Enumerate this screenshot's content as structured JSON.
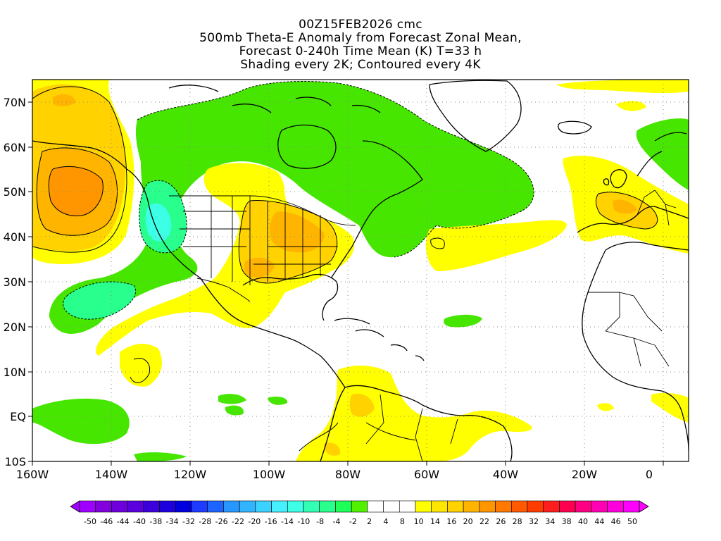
{
  "title": {
    "line1": "00Z15FEB2026 cmc",
    "line2": "500mb Theta-E Anomaly from Forecast Zonal Mean,",
    "line3": "Forecast 0-240h Time Mean (K) T=33 h",
    "line4": "Shading every 2K; Contoured every 4K"
  },
  "map": {
    "lat_labels": [
      "70N",
      "60N",
      "50N",
      "40N",
      "30N",
      "20N",
      "10N",
      "EQ",
      "10S"
    ],
    "lon_labels": [
      "160W",
      "140W",
      "120W",
      "100W",
      "80W",
      "60W",
      "40W",
      "20W",
      "0"
    ]
  },
  "colorbar": {
    "labels": [
      "-50",
      "-46",
      "-44",
      "-40",
      "-38",
      "-34",
      "-32",
      "-28",
      "-26",
      "-22",
      "-20",
      "-16",
      "-14",
      "-10",
      "-8",
      "-4",
      "-2",
      "2",
      "4",
      "8",
      "10",
      "14",
      "16",
      "20",
      "22",
      "26",
      "28",
      "32",
      "34",
      "38",
      "40",
      "44",
      "46",
      "50"
    ],
    "colors": [
      "#a000ff",
      "#8200dc",
      "#6e00dc",
      "#5a00dc",
      "#3c00dc",
      "#1e00dc",
      "#0000dc",
      "#1e3cff",
      "#1e64ff",
      "#2896ff",
      "#32b4ff",
      "#3cd2ff",
      "#46f0ff",
      "#3cffe6",
      "#32ffb4",
      "#28ff8c",
      "#1eff5a",
      "#50f000",
      "#ffffff",
      "#ffffff",
      "#ffffff",
      "#ffff00",
      "#ffe600",
      "#ffd200",
      "#ffb400",
      "#ff9600",
      "#ff7800",
      "#ff5a00",
      "#ff3c00",
      "#ff1e1e",
      "#ff0050",
      "#ff0082",
      "#ff00b4",
      "#ff00dc",
      "#ff00ff"
    ]
  }
}
